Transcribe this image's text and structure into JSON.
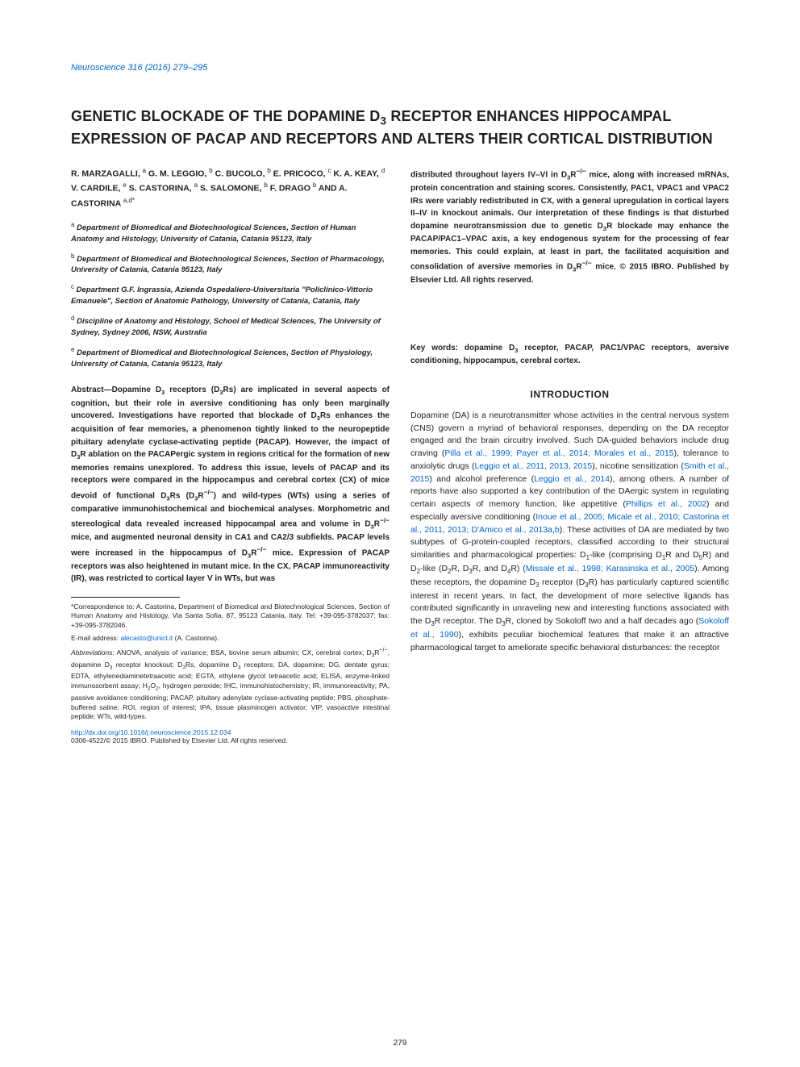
{
  "journal_ref": "Neuroscience 316 (2016) 279–295",
  "title_line1": "GENETIC BLOCKADE OF THE DOPAMINE D",
  "title_sub": "3",
  "title_line2": " RECEPTOR ENHANCES HIPPOCAMPAL EXPRESSION OF PACAP AND RECEPTORS AND ALTERS THEIR CORTICAL DISTRIBUTION",
  "authors_html": "R. MARZAGALLI, <sup>a</sup> G. M. LEGGIO, <sup>b</sup> C. BUCOLO, <sup>b</sup> E. PRICOCO, <sup>c</sup> K. A. KEAY, <sup>d</sup> V. CARDILE, <sup>e</sup> S. CASTORINA, <sup>a</sup> S. SALOMONE, <sup>b</sup> F. DRAGO <sup>b</sup> AND A. CASTORINA <sup>a,d*</sup>",
  "affiliations": [
    "<sup>a</sup> Department of Biomedical and Biotechnological Sciences, Section of Human Anatomy and Histology, University of Catania, Catania 95123, Italy",
    "<sup>b</sup> Department of Biomedical and Biotechnological Sciences, Section of Pharmacology, University of Catania, Catania 95123, Italy",
    "<sup>c</sup> Department G.F. Ingrassia, Azienda Ospedaliero-Universitaria \"Policlinico-Vittorio Emanuele\", Section of Anatomic Pathology, University of Catania, Catania, Italy",
    "<sup>d</sup> Discipline of Anatomy and Histology, School of Medical Sciences, The University of Sydney, Sydney 2006, NSW, Australia",
    "<sup>e</sup> Department of Biomedical and Biotechnological Sciences, Section of Physiology, University of Catania, Catania 95123, Italy"
  ],
  "abstract_left": "Abstract—Dopamine D<sub>3</sub> receptors (D<sub>3</sub>Rs) are implicated in several aspects of cognition, but their role in aversive conditioning has only been marginally uncovered. Investigations have reported that blockade of D<sub>3</sub>Rs enhances the acquisition of fear memories, a phenomenon tightly linked to the neuropeptide pituitary adenylate cyclase-activating peptide (PACAP). However, the impact of D<sub>3</sub>R ablation on the PACAPergic system in regions critical for the formation of new memories remains unexplored. To address this issue, levels of PACAP and its receptors were compared in the hippocampus and cerebral cortex (CX) of mice devoid of functional D<sub>3</sub>Rs (D<sub>3</sub>R<sup>−/−</sup>) and wild-types (WTs) using a series of comparative immunohistochemical and biochemical analyses. Morphometric and stereological data revealed increased hippocampal area and volume in D<sub>3</sub>R<sup>−/−</sup> mice, and augmented neuronal density in CA1 and CA2/3 subfields. PACAP levels were increased in the hippocampus of D<sub>3</sub>R<sup>−/−</sup> mice. Expression of PACAP receptors was also heightened in mutant mice. In the CX, PACAP immunoreactivity (IR), was restricted to cortical layer V in WTs, but was",
  "footer": {
    "correspondence": "*Correspondence to: A. Castorina, Department of Biomedical and Biotechnological Sciences, Section of Human Anatomy and Histology, Via Santa Sofia, 87, 95123 Catania, Italy. Tel: +39-095-3782037; fax: +39-095-3782046.",
    "email_label": "E-mail address:",
    "email": "alecasto@unict.it",
    "email_paren": "(A. Castorina).",
    "abbrev_label": "Abbreviations:",
    "abbrev": "ANOVA, analysis of variance; BSA, bovine serum albumin; CX, cerebral cortex; D<sub>3</sub>R<sup>−/−</sup>, dopamine D<sub>3</sub> receptor knockout; D<sub>3</sub>Rs, dopamine D<sub>3</sub> receptors; DA, dopamine; DG, dentate gyrus; EDTA, ethylenediaminetetraacetic acid; EGTA, ethylene glycol tetraacetic acid; ELISA, enzyme-linked immunosorbent assay; H<sub>2</sub>O<sub>2</sub>, hydrogen peroxide; IHC, immunohistochemistry; IR, immunoreactivity; PA, passive avoidance conditioning; PACAP, pituitary adenylate cyclase-activating peptide; PBS, phosphate-buffered saline; ROI, region of interest; tPA, tissue plasminogen activator; VIP, vasoactive intestinal peptide; WTs, wild-types.",
    "doi": "http://dx.doi.org/10.1016/j.neuroscience.2015.12.034",
    "copyright": "0306-4522/© 2015 IBRO. Published by Elsevier Ltd. All rights reserved."
  },
  "abstract_right": "distributed throughout layers IV–VI in D<sub>3</sub>R<sup>−/−</sup> mice, along with increased mRNAs, protein concentration and staining scores. Consistently, PAC1, VPAC1 and VPAC2 IRs were variably redistributed in CX, with a general upregulation in cortical layers II–IV in knockout animals. Our interpretation of these findings is that disturbed dopamine neurotransmission due to genetic D<sub>3</sub>R blockade may enhance the PACAP/PAC1–VPAC axis, a key endogenous system for the processing of fear memories. This could explain, at least in part, the facilitated acquisition and consolidation of aversive memories in D<sub>3</sub>R<sup>−/−</sup> mice. © 2015 IBRO. Published by Elsevier Ltd. All rights reserved.",
  "keywords": "Key words: dopamine D<sub>3</sub> receptor, PACAP, PAC1/VPAC receptors, aversive conditioning, hippocampus, cerebral cortex.",
  "section_heading": "INTRODUCTION",
  "intro_html": "Dopamine (DA) is a neurotransmitter whose activities in the central nervous system (CNS) govern a myriad of behavioral responses, depending on the DA receptor engaged and the brain circuitry involved. Such DA-guided behaviors include drug craving (<span class=\"cite\">Pilla et al., 1999; Payer et al., 2014; Morales et al., 2015</span>), tolerance to anxiolytic drugs (<span class=\"cite\">Leggio et al., 2011, 2013, 2015</span>), nicotine sensitization (<span class=\"cite\">Smith et al., 2015</span>) and alcohol preference (<span class=\"cite\">Leggio et al., 2014</span>), among others. A number of reports have also supported a key contribution of the DAergic system in regulating certain aspects of memory function, like appetitive (<span class=\"cite\">Phillips et al., 2002</span>) and especially aversive conditioning (<span class=\"cite\">Inoue et al., 2005; Micale et al., 2010; Castorina et al., 2011, 2013; D'Amico et al., 2013a,b</span>). These activities of DA are mediated by two subtypes of G-protein-coupled receptors, classified according to their structural similarities and pharmacological properties: D<sub>1</sub>-like (comprising D<sub>1</sub>R and D<sub>5</sub>R) and D<sub>2</sub>-like (D<sub>2</sub>R, D<sub>3</sub>R, and D<sub>4</sub>R) (<span class=\"cite\">Missale et al., 1998; Karasinska et al., 2005</span>). Among these receptors, the dopamine D<sub>3</sub> receptor (D<sub>3</sub>R) has particularly captured scientific interest in recent years. In fact, the development of more selective ligands has contributed significantly in unraveling new and interesting functions associated with the D<sub>3</sub>R receptor. The D<sub>3</sub>R, cloned by Sokoloff two and a half decades ago (<span class=\"cite\">Sokoloff et al., 1990</span>), exhibits peculiar biochemical features that make it an attractive pharmacological target to ameliorate specific behavioral disturbances: the receptor",
  "page_number": "279"
}
